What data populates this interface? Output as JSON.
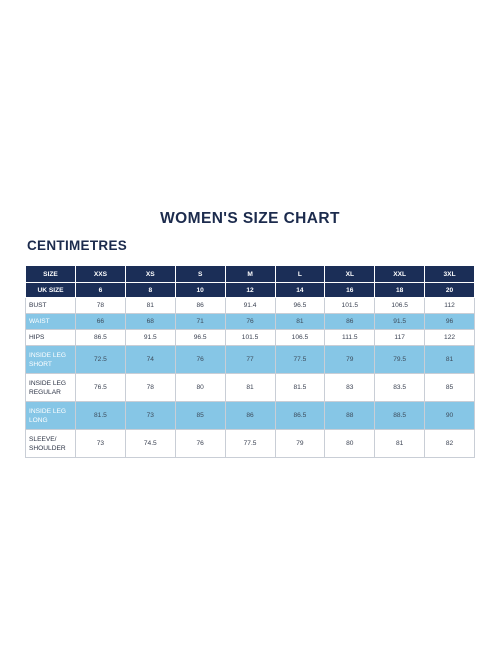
{
  "title": "WOMEN'S SIZE CHART",
  "subtitle": "CENTIMETRES",
  "header": {
    "label": "SIZE",
    "sizes": [
      "XXS",
      "XS",
      "S",
      "M",
      "L",
      "XL",
      "XXL",
      "3XL"
    ]
  },
  "uk_row": {
    "label": "UK SIZE",
    "values": [
      "6",
      "8",
      "10",
      "12",
      "14",
      "16",
      "18",
      "20"
    ]
  },
  "rows": [
    {
      "label": [
        "BUST"
      ],
      "values": [
        "78",
        "81",
        "86",
        "91.4",
        "96.5",
        "101.5",
        "106.5",
        "112"
      ],
      "style": "white"
    },
    {
      "label": [
        "WAIST"
      ],
      "values": [
        "66",
        "68",
        "71",
        "76",
        "81",
        "86",
        "91.5",
        "96"
      ],
      "style": "blue"
    },
    {
      "label": [
        "HIPS"
      ],
      "values": [
        "86.5",
        "91.5",
        "96.5",
        "101.5",
        "106.5",
        "111.5",
        "117",
        "122"
      ],
      "style": "white"
    },
    {
      "label": [
        "INSIDE LEG",
        "SHORT"
      ],
      "values": [
        "72.5",
        "74",
        "76",
        "77",
        "77.5",
        "79",
        "79.5",
        "81"
      ],
      "style": "blue"
    },
    {
      "label": [
        "INSIDE LEG",
        "REGULAR"
      ],
      "values": [
        "76.5",
        "78",
        "80",
        "81",
        "81.5",
        "83",
        "83.5",
        "85"
      ],
      "style": "white"
    },
    {
      "label": [
        "INSIDE LEG",
        "LONG"
      ],
      "values": [
        "81.5",
        "73",
        "85",
        "86",
        "86.5",
        "88",
        "88.5",
        "90"
      ],
      "style": "blue"
    },
    {
      "label": [
        "SLEEVE/",
        "SHOULDER"
      ],
      "values": [
        "73",
        "74.5",
        "76",
        "77.5",
        "79",
        "80",
        "81",
        "82"
      ],
      "style": "white"
    }
  ],
  "colors": {
    "header_bg": "#1b2e57",
    "row_blue": "#86c6e6",
    "title": "#1c2b4d"
  }
}
